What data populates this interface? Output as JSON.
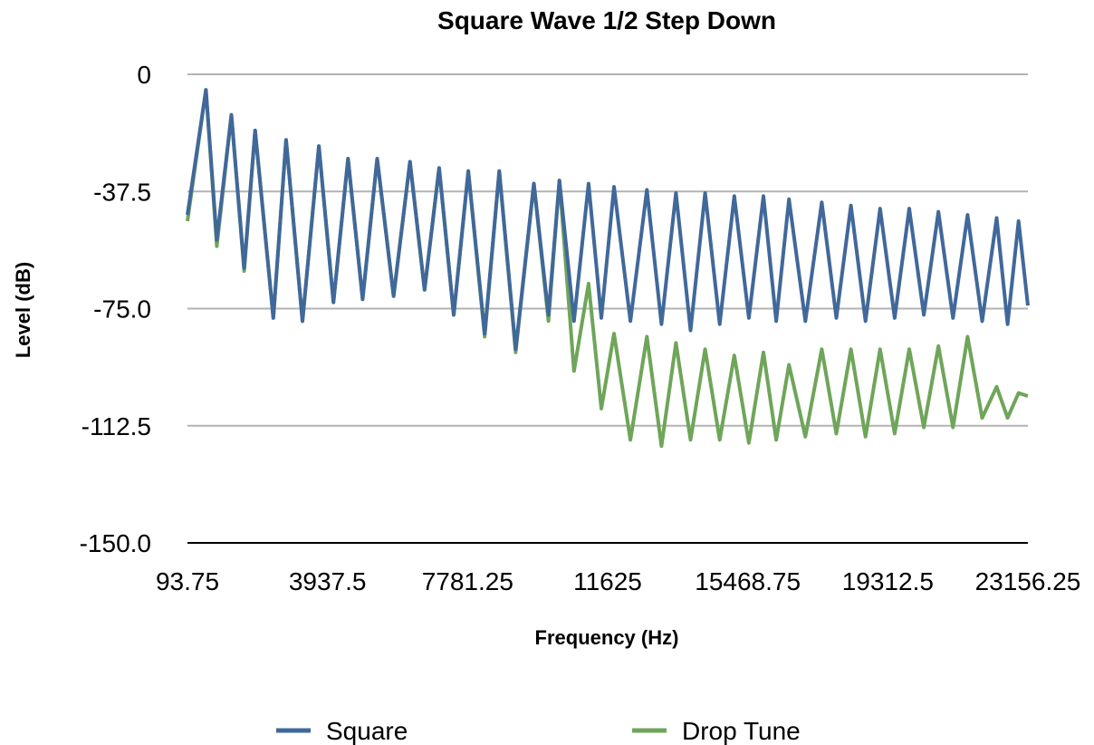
{
  "chart_data": {
    "type": "line",
    "title": "Square Wave 1/2 Step Down",
    "xlabel": "Frequency (Hz)",
    "ylabel": "Level (dB)",
    "ylim": [
      -150,
      0
    ],
    "xlim": [
      93.75,
      23156.25
    ],
    "y_ticks": [
      "0",
      "-37.5",
      "-75.0",
      "-112.5",
      "-150.0"
    ],
    "y_tick_values": [
      0,
      -37.5,
      -75,
      -112.5,
      -150
    ],
    "x_ticks": [
      "93.75",
      "3937.5",
      "7781.25",
      "11625",
      "15468.75",
      "19312.5",
      "23156.25"
    ],
    "x_tick_values": [
      93.75,
      3937.5,
      7781.25,
      11625,
      15468.75,
      19312.5,
      23156.25
    ],
    "grid": true,
    "legend_position": "bottom",
    "colors": {
      "Square": "#41689a",
      "Drop Tune": "#6fa55a",
      "grid": "#b3b3b3"
    },
    "series": [
      {
        "name": "Square",
        "peak_x": [
          600,
          1300,
          1950,
          2800,
          3700,
          4500,
          5300,
          6200,
          7000,
          7800,
          8650,
          9600,
          10300,
          11100,
          11800,
          12700,
          13500,
          14300,
          15100,
          15900,
          16600,
          17500,
          18300,
          19100,
          19900,
          20700,
          21500,
          22300,
          22900
        ],
        "peak_y": [
          -5,
          -13,
          -18,
          -21,
          -23,
          -27,
          -27,
          -28,
          -30,
          -31,
          -31,
          -35,
          -34,
          -35,
          -36,
          -37,
          -38,
          -38,
          -39,
          -39,
          -40,
          -41,
          -42,
          -43,
          -43,
          -44,
          -45,
          -46,
          -47
        ],
        "trough_x": [
          0,
          900,
          1650,
          2450,
          3250,
          4100,
          4900,
          5750,
          6600,
          7400,
          8250,
          9100,
          10000,
          10700,
          11450,
          12250,
          13100,
          13900,
          14700,
          15500,
          16250,
          17050,
          17900,
          18700,
          19500,
          20300,
          21100,
          21900,
          22600,
          23156.25
        ],
        "trough_y": [
          -45,
          -53,
          -62,
          -78,
          -79,
          -73,
          -72,
          -71,
          -69,
          -77,
          -83,
          -88,
          -77,
          -79,
          -78,
          -79,
          -80,
          -82,
          -80,
          -78,
          -79,
          -79,
          -78,
          -79,
          -78,
          -77,
          -78,
          -79,
          -80,
          -74
        ]
      },
      {
        "name": "Drop Tune",
        "peak_x": [
          600,
          1300,
          1950,
          2800,
          3700,
          4500,
          5300,
          6200,
          7000,
          7800,
          8650,
          9600,
          10300,
          11100,
          11800,
          12700,
          13500,
          14300,
          15100,
          15900,
          16600,
          17500,
          18300,
          19100,
          19900,
          20700,
          21500,
          22300,
          22900
        ],
        "peak_y": [
          -5,
          -13,
          -18,
          -21,
          -23,
          -27,
          -27,
          -28,
          -30,
          -31,
          -31,
          -35,
          -34,
          -67,
          -83,
          -84,
          -86,
          -88,
          -90,
          -89,
          -93,
          -88,
          -88,
          -88,
          -88,
          -87,
          -84,
          -100,
          -102
        ],
        "trough_x": [
          0,
          900,
          1650,
          2450,
          3250,
          4100,
          4900,
          5750,
          6600,
          7400,
          8250,
          9100,
          10000,
          10700,
          11450,
          12250,
          13100,
          13900,
          14700,
          15500,
          16250,
          17050,
          17900,
          18700,
          19500,
          20300,
          21100,
          21900,
          22600,
          23156.25
        ],
        "trough_y": [
          -47,
          -55,
          -63,
          -78,
          -79,
          -73,
          -72,
          -71,
          -69,
          -77,
          -84,
          -89,
          -79,
          -95,
          -107,
          -117,
          -119,
          -117,
          -117,
          -118,
          -117,
          -116,
          -115,
          -116,
          -115,
          -113,
          -113,
          -110,
          -110,
          -103
        ]
      }
    ]
  },
  "legend": {
    "items": [
      "Square",
      "Drop Tune"
    ]
  }
}
